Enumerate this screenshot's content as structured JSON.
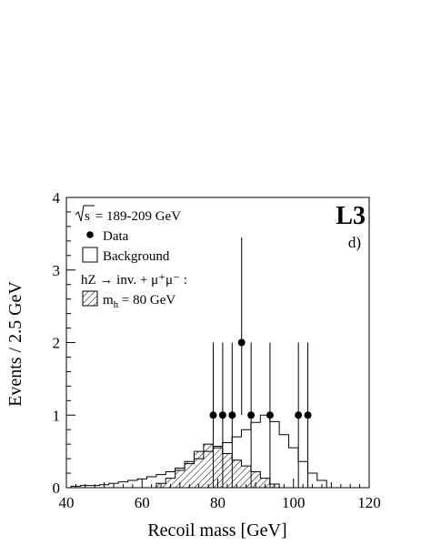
{
  "chart_data": {
    "type": "histogram",
    "xlabel": "Recoil mass  [GeV]",
    "ylabel": "Events / 2.5 GeV",
    "xlim": [
      40,
      120
    ],
    "ylim": [
      0,
      4
    ],
    "x_ticks": [
      "40",
      "60",
      "80",
      "100",
      "120"
    ],
    "y_ticks": [
      "0",
      "1",
      "2",
      "3",
      "4"
    ],
    "bin_width": 2.5,
    "annotations": {
      "sqrt_s": "s",
      "energy": " = 189-209 GeV",
      "experiment": "L3",
      "panel": "d)",
      "signal_process": "hZ → inv. + μ⁺μ⁻ :",
      "signal_mass": "m",
      "signal_mass_sub": "h",
      "signal_mass_value": " = 80 GeV"
    },
    "legend": {
      "placement": "top-left",
      "entries": [
        "Data",
        "Background",
        "m_h = 80 GeV"
      ]
    },
    "series": [
      {
        "name": "Background",
        "style": "open-histogram",
        "bins": [
          [
            42.5,
            0.02
          ],
          [
            45,
            0.03
          ],
          [
            47.5,
            0.03
          ],
          [
            50,
            0.04
          ],
          [
            52.5,
            0.06
          ],
          [
            55,
            0.08
          ],
          [
            57.5,
            0.1
          ],
          [
            60,
            0.12
          ],
          [
            62.5,
            0.15
          ],
          [
            65,
            0.18
          ],
          [
            67.5,
            0.22
          ],
          [
            70,
            0.27
          ],
          [
            72.5,
            0.33
          ],
          [
            75,
            0.4
          ],
          [
            77.5,
            0.5
          ],
          [
            80,
            0.57
          ],
          [
            82.5,
            0.62
          ],
          [
            85,
            0.7
          ],
          [
            87.5,
            0.8
          ],
          [
            90,
            0.9
          ],
          [
            92.5,
            1.0
          ],
          [
            95,
            0.91
          ],
          [
            97.5,
            0.73
          ],
          [
            100,
            0.55
          ],
          [
            102.5,
            0.36
          ],
          [
            105,
            0.2
          ],
          [
            107.5,
            0.1
          ],
          [
            110,
            0.0
          ]
        ]
      },
      {
        "name": "m_h = 80 GeV",
        "style": "hatched-histogram",
        "bins": [
          [
            65,
            0.06
          ],
          [
            67.5,
            0.13
          ],
          [
            70,
            0.24
          ],
          [
            72.5,
            0.36
          ],
          [
            75,
            0.5
          ],
          [
            77.5,
            0.6
          ],
          [
            80,
            0.55
          ],
          [
            82.5,
            0.47
          ],
          [
            85,
            0.38
          ],
          [
            87.5,
            0.3
          ],
          [
            90,
            0.22
          ],
          [
            92.5,
            0.13
          ],
          [
            95,
            0.05
          ],
          [
            97.5,
            0.0
          ]
        ]
      }
    ],
    "data_points": [
      {
        "x": 78.8,
        "y": 1,
        "err_low": 1.0,
        "err_high": 1.0
      },
      {
        "x": 81.3,
        "y": 1,
        "err_low": 1.0,
        "err_high": 1.0
      },
      {
        "x": 83.8,
        "y": 1,
        "err_low": 1.0,
        "err_high": 1.0
      },
      {
        "x": 86.3,
        "y": 2,
        "err_low": 1.0,
        "err_high": 1.45
      },
      {
        "x": 88.8,
        "y": 1,
        "err_low": 1.0,
        "err_high": 1.0
      },
      {
        "x": 93.8,
        "y": 1,
        "err_low": 1.0,
        "err_high": 1.0
      },
      {
        "x": 101.3,
        "y": 1,
        "err_low": 1.0,
        "err_high": 1.0
      },
      {
        "x": 103.8,
        "y": 1,
        "err_low": 1.0,
        "err_high": 1.0
      }
    ]
  }
}
